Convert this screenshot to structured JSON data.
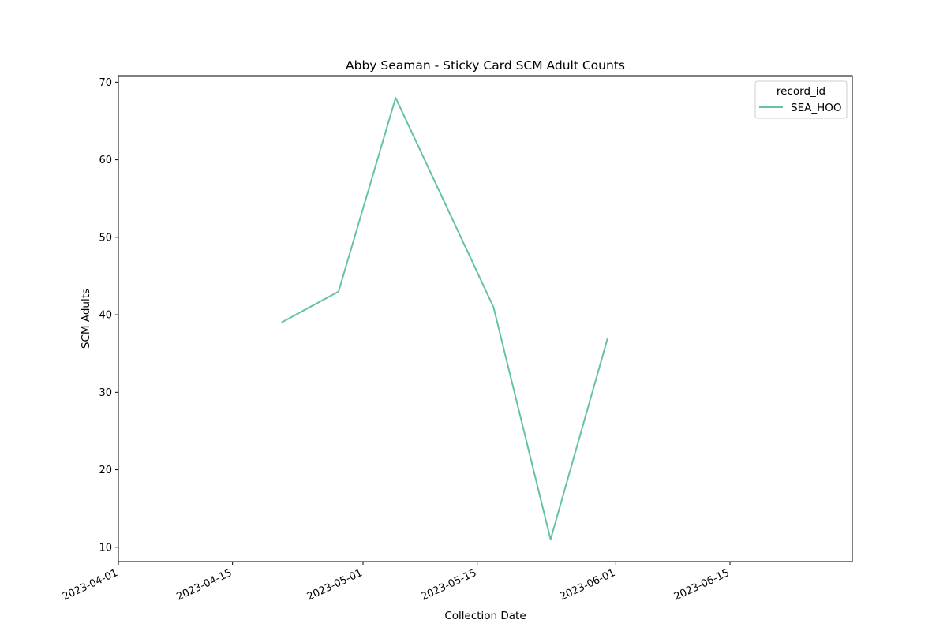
{
  "chart_data": {
    "type": "line",
    "title": "Abby Seaman - Sticky Card SCM Adult Counts",
    "xlabel": "Collection Date",
    "ylabel": "SCM Adults",
    "x_type": "date",
    "xlim": [
      "2023-04-01",
      "2023-06-30"
    ],
    "ylim": [
      8.15,
      70.85
    ],
    "x_ticks": [
      "2023-04-01",
      "2023-04-15",
      "2023-05-01",
      "2023-05-15",
      "2023-06-01",
      "2023-06-15"
    ],
    "y_ticks": [
      10,
      20,
      30,
      40,
      50,
      60,
      70
    ],
    "legend": {
      "title": "record_id",
      "placement": "top-right"
    },
    "grid": false,
    "series": [
      {
        "name": "SEA_HOO",
        "color": "#66c2a5",
        "x": [
          "2023-04-21",
          "2023-04-28",
          "2023-05-05",
          "2023-05-17",
          "2023-05-24",
          "2023-05-31"
        ],
        "y": [
          39,
          43,
          68,
          41,
          11,
          37
        ]
      }
    ]
  }
}
